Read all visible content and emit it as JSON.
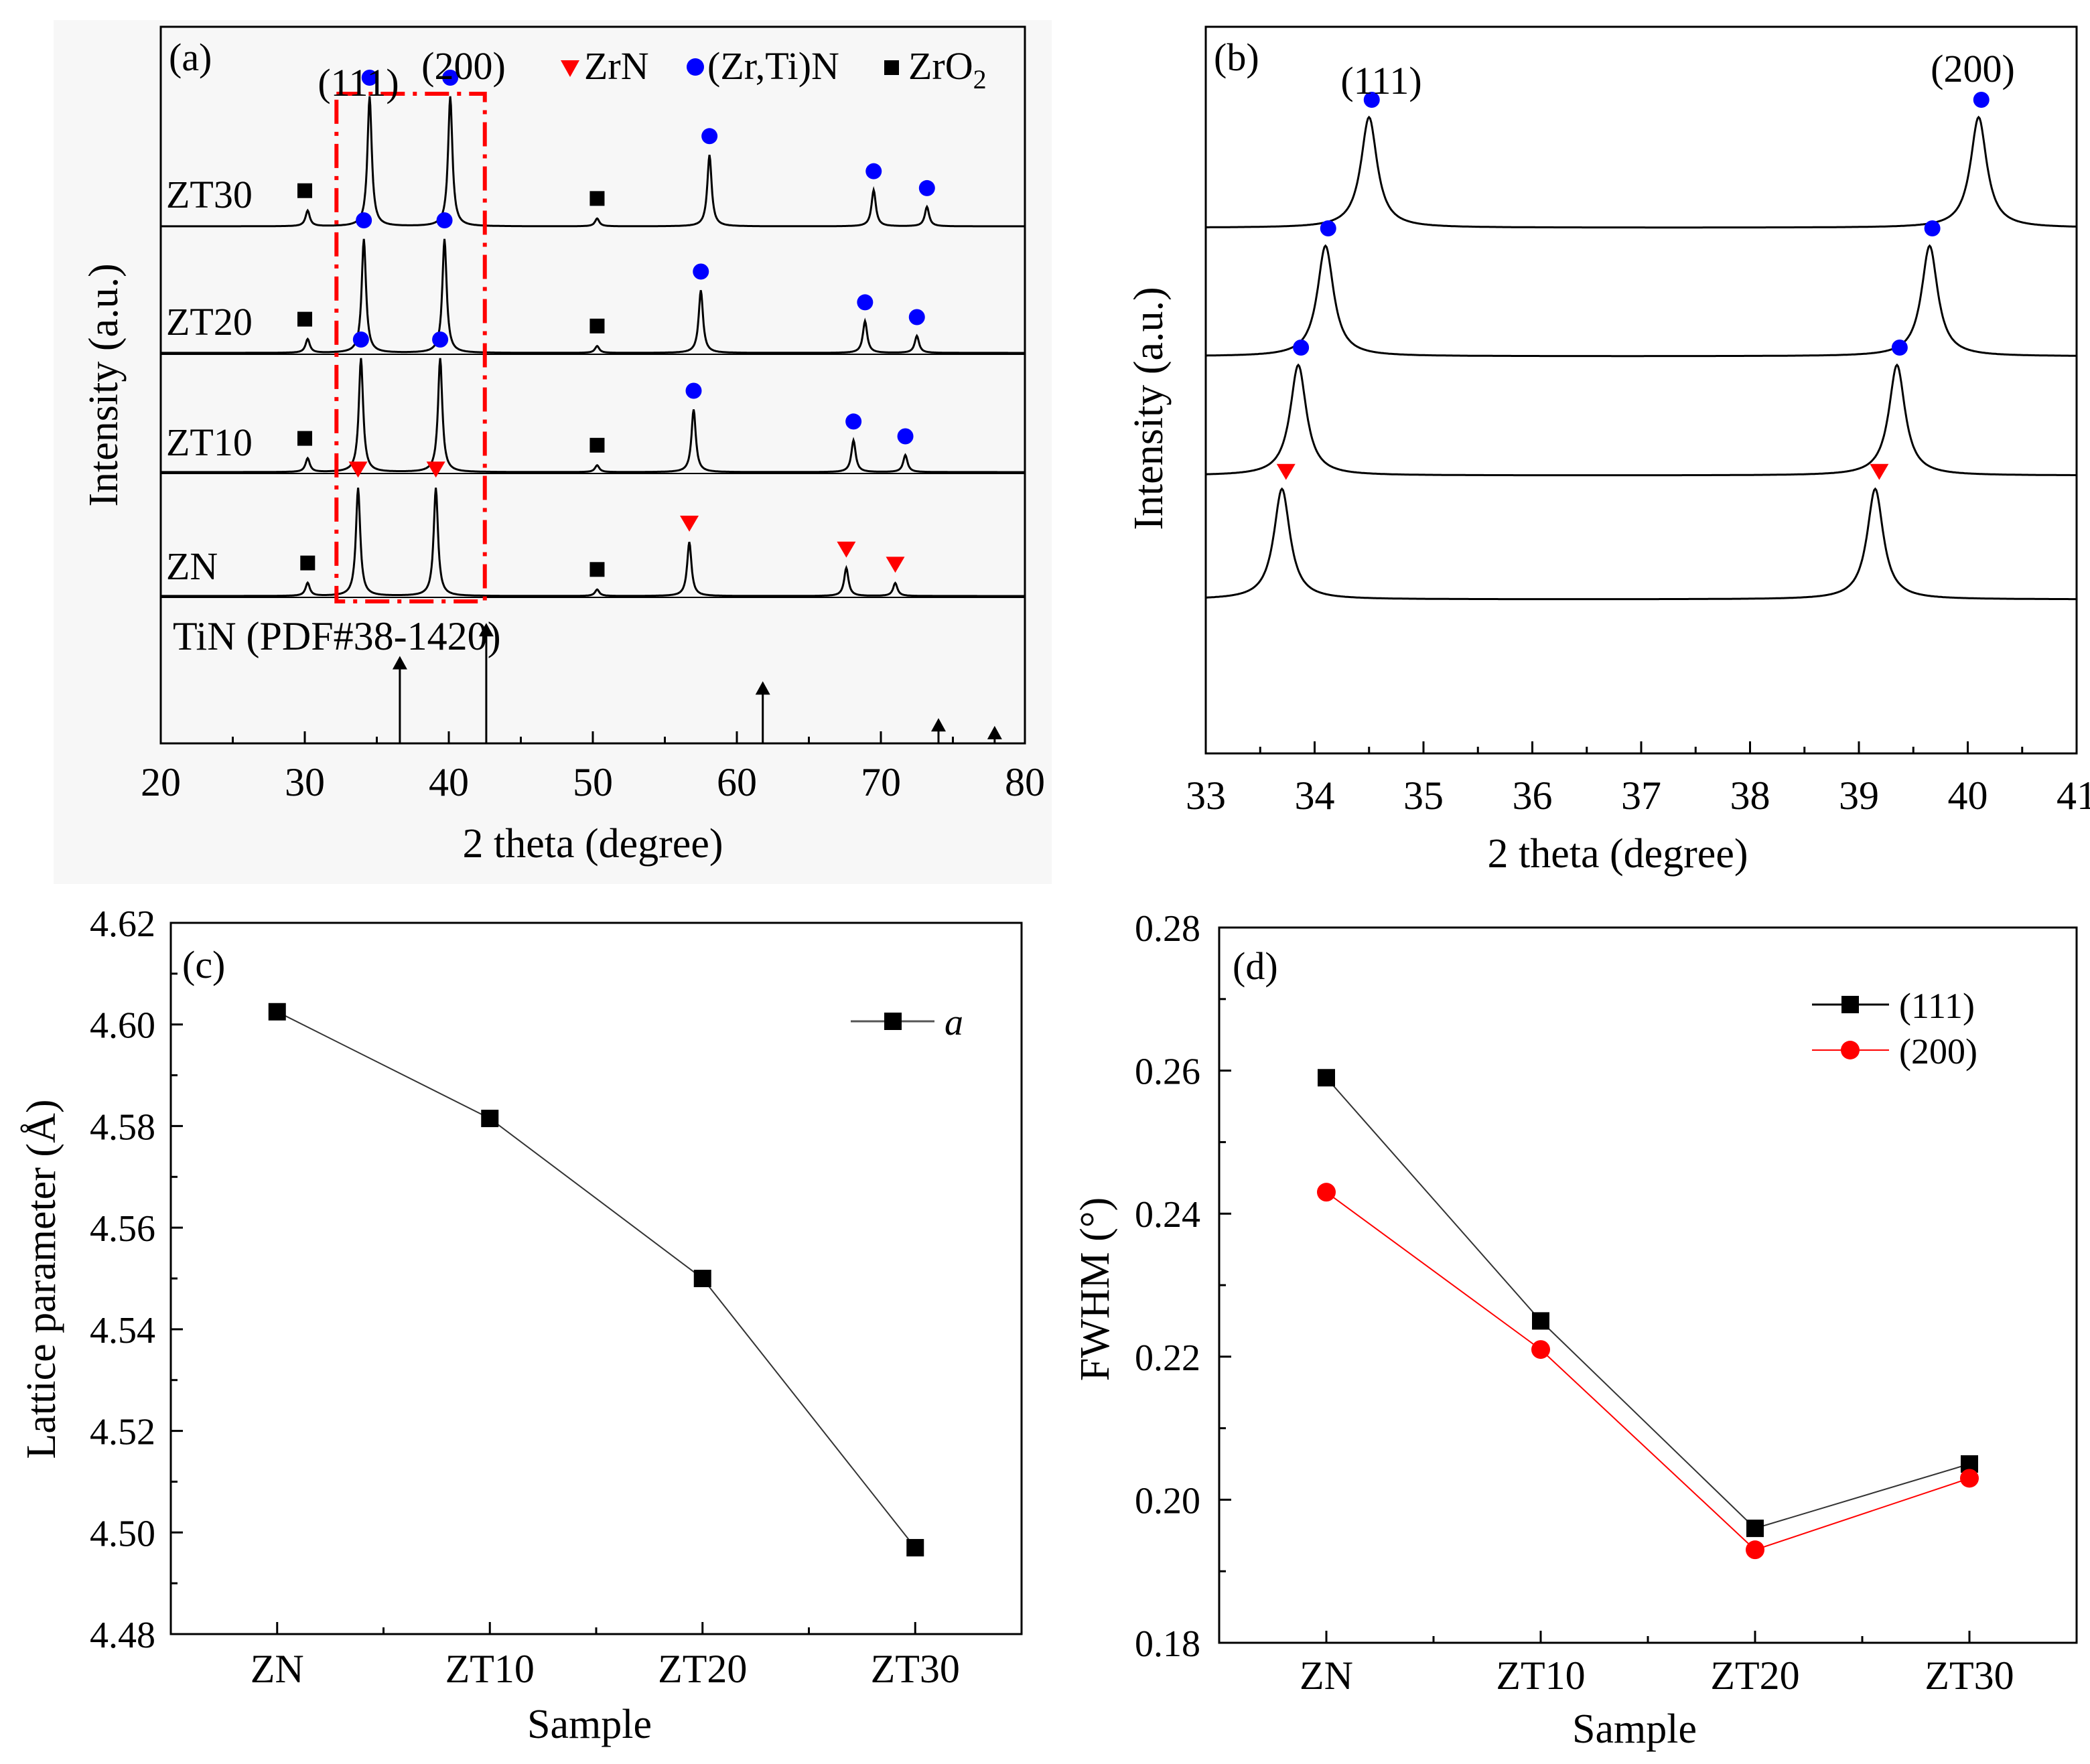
{
  "colors": {
    "zrn": "#ff0000",
    "zrtin": "#0000ff",
    "zro2": "#000000",
    "series_111": "#000000",
    "series_200": "#ff0000",
    "box": "#ff0000",
    "panel_a_bg": "#f7f7f7"
  },
  "chart_data": [
    {
      "id": "a",
      "type": "line",
      "panel_label": "(a)",
      "xlabel": "2 theta (degree)",
      "ylabel": "Intensity (a.u.)",
      "xlim": [
        20,
        80
      ],
      "xticks": [
        "20",
        "30",
        "40",
        "50",
        "60",
        "70",
        "80"
      ],
      "legend": [
        {
          "name": "ZrN",
          "marker": "triangle-down",
          "color": "#ff0000"
        },
        {
          "name": "(Zr,Ti)N",
          "marker": "circle",
          "color": "#0000ff"
        },
        {
          "name": "ZrO2",
          "marker": "square",
          "color": "#000000"
        }
      ],
      "legend_text": {
        "zrn": "ZrN",
        "zrtin": "(Zr,Ti)N",
        "zro2_base": "ZrO",
        "zro2_sub": "2"
      },
      "annotations": {
        "peak_111": "(111)",
        "peak_200": "(200)",
        "reference": "TiN (PDF#38-1420)",
        "box_x_range": [
          32.2,
          42.5
        ]
      },
      "series": [
        {
          "name": "ZT30",
          "peaks": [
            [
              30.2,
              0.12
            ],
            [
              34.5,
              1.0
            ],
            [
              40.1,
              1.0
            ],
            [
              50.3,
              0.06
            ],
            [
              58.1,
              0.55
            ],
            [
              69.5,
              0.28
            ],
            [
              73.2,
              0.15
            ]
          ],
          "markers": [
            {
              "x": 30.0,
              "type": "square"
            },
            {
              "x": 34.5,
              "type": "circle"
            },
            {
              "x": 40.1,
              "type": "circle"
            },
            {
              "x": 50.3,
              "type": "square"
            },
            {
              "x": 58.1,
              "type": "circle"
            },
            {
              "x": 69.5,
              "type": "circle"
            },
            {
              "x": 73.2,
              "type": "circle"
            }
          ]
        },
        {
          "name": "ZT20",
          "peaks": [
            [
              30.2,
              0.12
            ],
            [
              34.1,
              1.0
            ],
            [
              39.7,
              1.0
            ],
            [
              50.3,
              0.06
            ],
            [
              57.5,
              0.55
            ],
            [
              68.9,
              0.28
            ],
            [
              72.5,
              0.15
            ]
          ],
          "markers": [
            {
              "x": 30.0,
              "type": "square"
            },
            {
              "x": 34.1,
              "type": "circle"
            },
            {
              "x": 39.7,
              "type": "circle"
            },
            {
              "x": 50.3,
              "type": "square"
            },
            {
              "x": 57.5,
              "type": "circle"
            },
            {
              "x": 68.9,
              "type": "circle"
            },
            {
              "x": 72.5,
              "type": "circle"
            }
          ]
        },
        {
          "name": "ZT10",
          "peaks": [
            [
              30.2,
              0.12
            ],
            [
              33.9,
              1.0
            ],
            [
              39.4,
              1.0
            ],
            [
              50.3,
              0.06
            ],
            [
              57.0,
              0.55
            ],
            [
              68.1,
              0.28
            ],
            [
              71.7,
              0.15
            ]
          ],
          "markers": [
            {
              "x": 30.0,
              "type": "square"
            },
            {
              "x": 33.9,
              "type": "circle"
            },
            {
              "x": 39.4,
              "type": "circle"
            },
            {
              "x": 50.3,
              "type": "square"
            },
            {
              "x": 57.0,
              "type": "circle"
            },
            {
              "x": 68.1,
              "type": "circle"
            },
            {
              "x": 71.7,
              "type": "circle"
            }
          ]
        },
        {
          "name": "ZN",
          "peaks": [
            [
              30.2,
              0.12
            ],
            [
              33.7,
              1.0
            ],
            [
              39.1,
              1.0
            ],
            [
              50.3,
              0.06
            ],
            [
              56.7,
              0.5
            ],
            [
              67.6,
              0.26
            ],
            [
              71.0,
              0.12
            ]
          ],
          "markers": [
            {
              "x": 30.2,
              "type": "square"
            },
            {
              "x": 33.7,
              "type": "triangle"
            },
            {
              "x": 39.1,
              "type": "triangle"
            },
            {
              "x": 50.3,
              "type": "square"
            },
            {
              "x": 56.7,
              "type": "triangle"
            },
            {
              "x": 67.6,
              "type": "triangle"
            },
            {
              "x": 71.0,
              "type": "triangle"
            }
          ]
        }
      ],
      "reference_lines": [
        {
          "x": 36.6,
          "height": 0.45
        },
        {
          "x": 42.6,
          "height": 0.62
        },
        {
          "x": 61.8,
          "height": 0.32
        },
        {
          "x": 74.0,
          "height": 0.13
        },
        {
          "x": 77.9,
          "height": 0.09
        }
      ]
    },
    {
      "id": "b",
      "type": "line",
      "panel_label": "(b)",
      "xlabel": "2 theta (degree)",
      "ylabel": "Intensity (a.u.)",
      "xlim": [
        33,
        41
      ],
      "xticks": [
        "33",
        "34",
        "35",
        "36",
        "37",
        "38",
        "39",
        "40",
        "41"
      ],
      "annotations": {
        "peak_111": "(111)",
        "peak_200": "(200)"
      },
      "series": [
        {
          "name": "ZT30",
          "peaks": [
            [
              34.5,
              1.0
            ],
            [
              40.1,
              1.0
            ]
          ],
          "marker_type": "circle"
        },
        {
          "name": "ZT20",
          "peaks": [
            [
              34.1,
              1.0
            ],
            [
              39.65,
              1.0
            ]
          ],
          "marker_type": "circle"
        },
        {
          "name": "ZT10",
          "peaks": [
            [
              33.85,
              1.0
            ],
            [
              39.35,
              1.0
            ]
          ],
          "marker_type": "circle"
        },
        {
          "name": "ZN",
          "peaks": [
            [
              33.7,
              1.0
            ],
            [
              39.15,
              1.0
            ]
          ],
          "marker_type": "triangle"
        }
      ]
    },
    {
      "id": "c",
      "type": "line",
      "panel_label": "(c)",
      "xlabel": "Sample",
      "ylabel": "Lattice parameter (Å)",
      "categories": [
        "ZN",
        "ZT10",
        "ZT20",
        "ZT30"
      ],
      "ylim": [
        4.48,
        4.62
      ],
      "yticks": [
        "4.48",
        "4.50",
        "4.52",
        "4.54",
        "4.56",
        "4.58",
        "4.60",
        "4.62"
      ],
      "series": [
        {
          "name": "a",
          "values": [
            4.6025,
            4.5815,
            4.55,
            4.497
          ],
          "color": "#000000",
          "marker": "square"
        }
      ]
    },
    {
      "id": "d",
      "type": "line",
      "panel_label": "(d)",
      "xlabel": "Sample",
      "ylabel": "FWHM (°)",
      "categories": [
        "ZN",
        "ZT10",
        "ZT20",
        "ZT30"
      ],
      "ylim": [
        0.18,
        0.28
      ],
      "yticks": [
        "0.18",
        "0.20",
        "0.22",
        "0.24",
        "0.26",
        "0.28"
      ],
      "series": [
        {
          "name": "(111)",
          "values": [
            0.259,
            0.225,
            0.196,
            0.205
          ],
          "color": "#000000",
          "marker": "square"
        },
        {
          "name": "(200)",
          "values": [
            0.243,
            0.221,
            0.193,
            0.203
          ],
          "color": "#ff0000",
          "marker": "circle"
        }
      ]
    }
  ]
}
